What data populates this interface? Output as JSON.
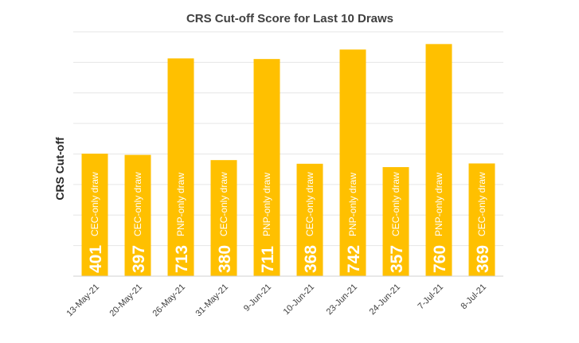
{
  "chart_data": {
    "type": "bar",
    "title": "CRS Cut-off Score for Last 10 Draws",
    "xlabel": "",
    "ylabel": "CRS Cut-off",
    "categories": [
      "13-May-21",
      "20-May-21",
      "26-May-21",
      "31-May-21",
      "9-Jun-21",
      "10-Jun-21",
      "23-Jun-21",
      "24-Jun-21",
      "7-Jul-21",
      "8-Jul-21"
    ],
    "values": [
      401,
      397,
      713,
      380,
      711,
      368,
      742,
      357,
      760,
      369
    ],
    "value_labels": [
      "401",
      "397",
      "713",
      "380",
      "711",
      "368",
      "742",
      "357",
      "760",
      "369"
    ],
    "draw_labels": [
      "CEC-only draw",
      "CEC-only draw",
      "PNP-only draw",
      "CEC-only draw",
      "PNP-only draw",
      "CEC-only draw",
      "PNP-only draw",
      "CEC-only draw",
      "PNP-only draw",
      "CEC-only draw"
    ],
    "ylim": [
      0,
      800
    ],
    "grid": true,
    "legend": "none",
    "colors": {
      "bar": "#FFC000",
      "grid": "#E6E6E6",
      "axis": "#D0D0D0"
    }
  }
}
